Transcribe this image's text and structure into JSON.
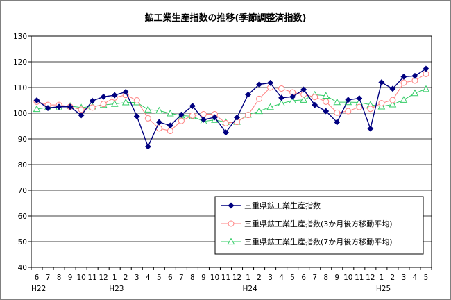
{
  "chart_data": {
    "type": "line",
    "title": "鉱工業生産指数の推移(季節調整済指数)",
    "xlabel": "",
    "ylabel": "",
    "ylim": [
      40,
      130
    ],
    "yticks": [
      40,
      50,
      60,
      70,
      80,
      90,
      100,
      110,
      120,
      130
    ],
    "grid": true,
    "legend_position": "bottom-right",
    "categories": [
      "6",
      "7",
      "8",
      "9",
      "10",
      "11",
      "12",
      "1",
      "2",
      "3",
      "4",
      "5",
      "6",
      "7",
      "8",
      "9",
      "10",
      "11",
      "12",
      "1",
      "2",
      "3",
      "4",
      "5",
      "6",
      "7",
      "8",
      "9",
      "10",
      "11",
      "12",
      "1",
      "2",
      "3",
      "4",
      "5"
    ],
    "era_labels": [
      {
        "label": "H22",
        "index": 0
      },
      {
        "label": "H23",
        "index": 7
      },
      {
        "label": "H24",
        "index": 19
      },
      {
        "label": "H25",
        "index": 31
      }
    ],
    "series": [
      {
        "name": "三重県鉱工業生産指数",
        "color": "#000080",
        "marker": "diamond-filled",
        "values": [
          105.0,
          102.0,
          102.5,
          102.5,
          99.2,
          104.8,
          106.4,
          107.0,
          108.3,
          98.8,
          87.0,
          96.5,
          95.2,
          99.4,
          102.8,
          97.5,
          98.4,
          92.5,
          98.3,
          107.2,
          111.2,
          111.8,
          106.0,
          106.4,
          109.2,
          103.2,
          100.8,
          96.5,
          105.2,
          105.8,
          94.0,
          112.0,
          109.5,
          114.2,
          114.5,
          117.3
        ]
      },
      {
        "name": "三重県鉱工業生産指数(3か月後方移動平均)",
        "color": "#FF8080",
        "marker": "circle-open",
        "values": [
          104.5,
          103.2,
          103.2,
          102.5,
          101.4,
          102.2,
          103.6,
          106.1,
          107.1,
          105.0,
          98.0,
          94.1,
          93.1,
          97.0,
          99.1,
          99.6,
          99.6,
          96.1,
          96.6,
          99.3,
          105.6,
          110.0,
          109.6,
          108.1,
          107.3,
          106.3,
          104.5,
          100.2,
          100.8,
          102.4,
          101.7,
          103.9,
          105.1,
          111.9,
          112.7,
          115.3
        ]
      },
      {
        "name": "三重県鉱工業生産指数(7か月後方移動平均)",
        "color": "#33CC66",
        "marker": "triangle-open",
        "values": [
          101.6,
          102.3,
          102.3,
          102.8,
          102.2,
          102.6,
          103.2,
          103.6,
          104.2,
          104.2,
          101.4,
          101.0,
          99.9,
          99.1,
          98.8,
          96.8,
          97.4,
          96.5,
          96.6,
          99.4,
          100.8,
          102.4,
          103.8,
          104.9,
          105.2,
          107.2,
          106.8,
          104.3,
          104.3,
          104.2,
          103.3,
          102.6,
          103.4,
          105.2,
          107.8,
          109.4
        ]
      }
    ]
  }
}
